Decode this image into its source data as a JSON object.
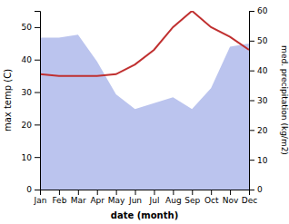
{
  "chart_data": {
    "type": "line",
    "categories": [
      "Jan",
      "Feb",
      "Mar",
      "Apr",
      "May",
      "Jun",
      "Jul",
      "Aug",
      "Sep",
      "Oct",
      "Nov",
      "Dec"
    ],
    "x_label": "date (month)",
    "y_label": "max temp (C)",
    "y2_label": "med. precipitation (kg/m2)",
    "ylim": [
      0,
      55
    ],
    "yticks": [
      0,
      10,
      20,
      30,
      40,
      50
    ],
    "y2lim": [
      0,
      60
    ],
    "y2ticks": [
      0,
      10,
      20,
      30,
      40,
      50,
      60
    ],
    "series": [
      {
        "type": "area",
        "axis": "y2",
        "color": "#bbc4ee",
        "values": [
          51,
          51,
          52,
          43,
          32,
          27,
          29,
          31,
          27,
          34,
          48,
          49
        ]
      },
      {
        "type": "line",
        "color": "#c03030",
        "values": [
          35.5,
          35.0,
          35.0,
          35.0,
          35.5,
          38.5,
          43.0,
          50.0,
          55.0,
          50.0,
          47.0,
          43.0
        ]
      }
    ]
  }
}
